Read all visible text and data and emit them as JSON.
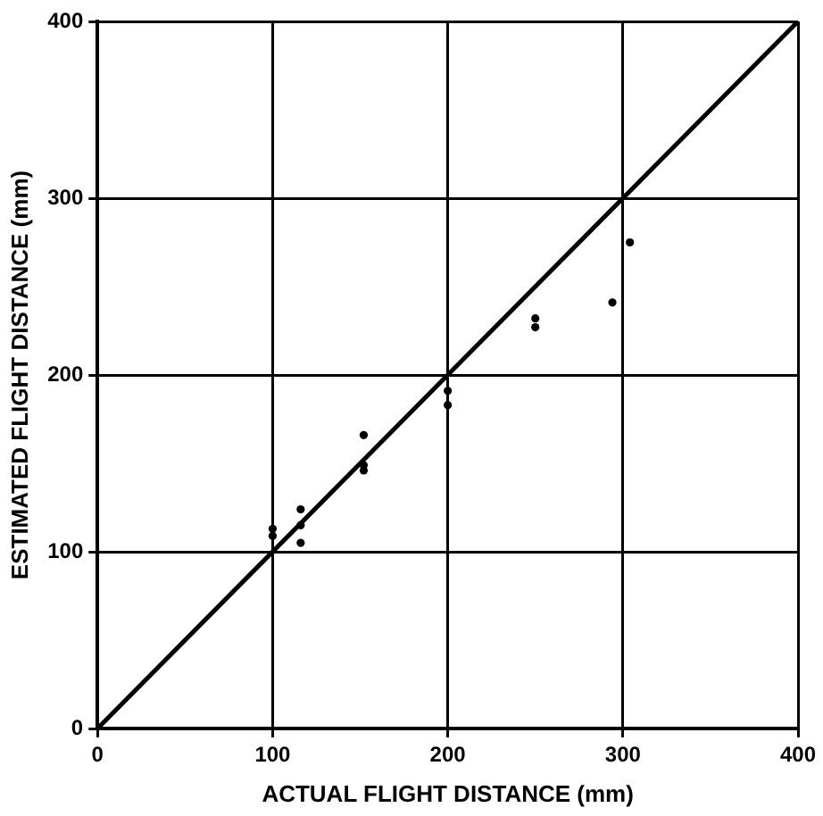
{
  "chart_data": {
    "type": "scatter",
    "xlabel": "ACTUAL FLIGHT DISTANCE (mm)",
    "ylabel": "ESTIMATED FLIGHT DISTANCE (mm)",
    "xlim": [
      0,
      400
    ],
    "ylim": [
      0,
      400
    ],
    "xticks": [
      0,
      100,
      200,
      300,
      400
    ],
    "yticks": [
      0,
      100,
      200,
      300,
      400
    ],
    "grid": true,
    "series": [
      {
        "marker": "circle",
        "color": "#000000",
        "x": [
          100,
          100,
          116,
          116,
          116,
          152,
          152,
          152,
          200,
          200,
          250,
          250,
          294,
          304
        ],
        "values": [
          113,
          109,
          124,
          115,
          105,
          166,
          149,
          146,
          191,
          183,
          232,
          227,
          241,
          275
        ]
      },
      {
        "type": "line",
        "marker": "none",
        "color": "#000000",
        "x": [
          0,
          400
        ],
        "values": [
          0,
          400
        ]
      }
    ]
  }
}
